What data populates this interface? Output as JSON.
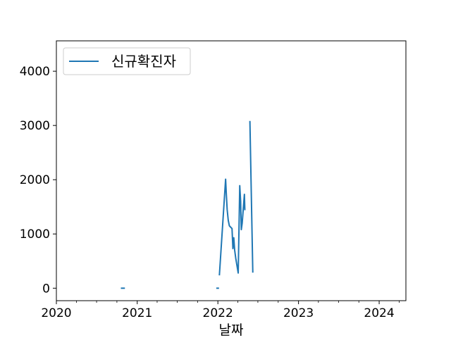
{
  "chart_data": {
    "type": "line",
    "title": "",
    "xlabel": "날짜",
    "ylabel": "",
    "xlim": [
      "2020-01-01",
      "2024-05-01"
    ],
    "ylim": [
      -230,
      4560
    ],
    "x_ticks": [
      "2020",
      "2021",
      "2022",
      "2023",
      "2024"
    ],
    "y_ticks": [
      0,
      1000,
      2000,
      3000,
      4000
    ],
    "grid": false,
    "legend": {
      "position": "top-left",
      "entries": [
        "신규확진자"
      ]
    },
    "colors": {
      "series": "#1f77b4"
    },
    "series": [
      {
        "name": "신규확진자",
        "segments": [
          [
            {
              "x": "2020-10-22",
              "y": 0
            },
            {
              "x": "2020-11-03",
              "y": 0
            }
          ],
          [
            {
              "x": "2021-12-28",
              "y": 0
            },
            {
              "x": "2022-01-03",
              "y": 0
            }
          ],
          [
            {
              "x": "2022-01-08",
              "y": 250
            },
            {
              "x": "2022-02-05",
              "y": 2010
            },
            {
              "x": "2022-02-08",
              "y": 1750
            },
            {
              "x": "2022-02-12",
              "y": 1450
            },
            {
              "x": "2022-02-17",
              "y": 1250
            },
            {
              "x": "2022-02-22",
              "y": 1150
            },
            {
              "x": "2022-03-01",
              "y": 1120
            },
            {
              "x": "2022-03-06",
              "y": 1100
            },
            {
              "x": "2022-03-10",
              "y": 730
            },
            {
              "x": "2022-03-14",
              "y": 930
            },
            {
              "x": "2022-03-18",
              "y": 700
            },
            {
              "x": "2022-03-23",
              "y": 550
            },
            {
              "x": "2022-04-03",
              "y": 280
            },
            {
              "x": "2022-04-10",
              "y": 1890
            },
            {
              "x": "2022-04-14",
              "y": 1600
            },
            {
              "x": "2022-04-17",
              "y": 1080
            },
            {
              "x": "2022-04-21",
              "y": 1200
            },
            {
              "x": "2022-05-01",
              "y": 1730
            },
            {
              "x": "2022-05-03",
              "y": 1450
            }
          ],
          [
            {
              "x": "2022-05-26",
              "y": 3070
            },
            {
              "x": "2022-06-08",
              "y": 300
            }
          ]
        ]
      }
    ]
  }
}
